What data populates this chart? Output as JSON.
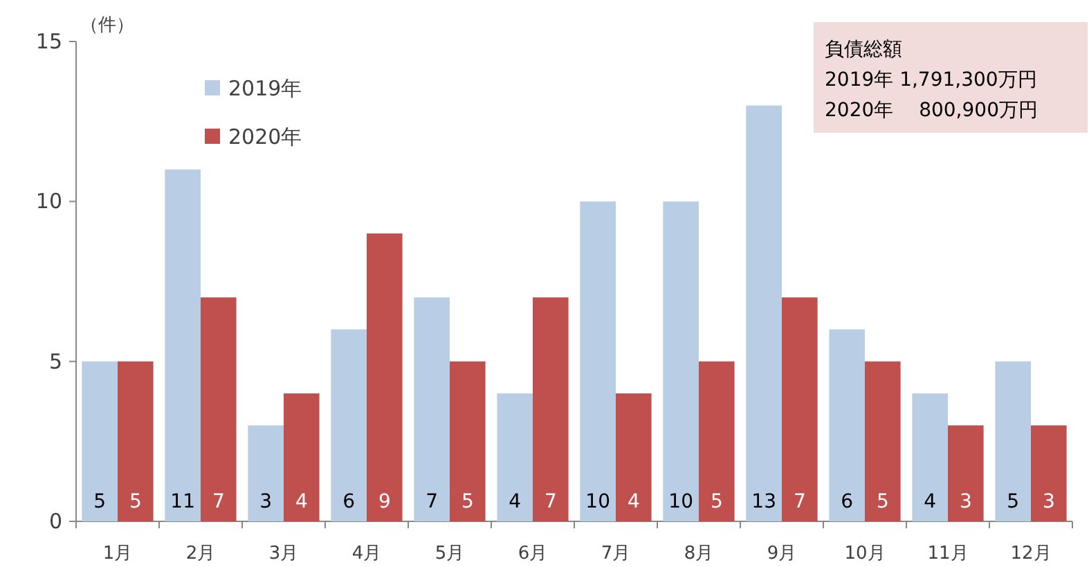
{
  "chart_data": {
    "type": "bar",
    "ylabel": "（件）",
    "categories": [
      "1月",
      "2月",
      "3月",
      "4月",
      "5月",
      "6月",
      "7月",
      "8月",
      "9月",
      "10月",
      "11月",
      "12月"
    ],
    "series": [
      {
        "name": "2019年",
        "color": "#b9cde5",
        "values": [
          5,
          11,
          3,
          6,
          7,
          4,
          10,
          10,
          13,
          6,
          4,
          5
        ]
      },
      {
        "name": "2020年",
        "color": "#c0504d",
        "values": [
          5,
          7,
          4,
          9,
          5,
          7,
          4,
          5,
          7,
          5,
          3,
          3
        ]
      }
    ],
    "ylim": [
      0,
      15
    ],
    "yticks": [
      0,
      5,
      10,
      15
    ],
    "legend": "top left",
    "data_labels": true,
    "annotations": [
      "負債総額",
      "2019年  1,791,300万円",
      "2020年　 800,900万円"
    ]
  }
}
